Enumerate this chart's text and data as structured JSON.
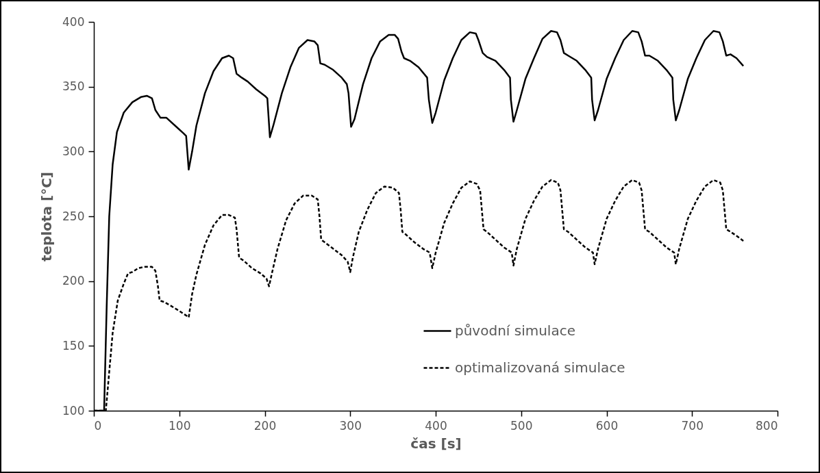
{
  "chart_data": {
    "type": "line",
    "xlabel": "čas [s]",
    "ylabel": "teplota [°C]",
    "xlim": [
      0,
      800
    ],
    "xticks": [
      0,
      100,
      200,
      300,
      400,
      500,
      600,
      700,
      800
    ],
    "ylim": [
      100,
      400
    ],
    "yticks": [
      100,
      150,
      200,
      250,
      300,
      350,
      400
    ],
    "grid": false,
    "legend": "bottom right",
    "marker": "none",
    "series": [
      {
        "name": "původní simulace",
        "color": "#000000",
        "line_style": "solid",
        "x": [
          0,
          12,
          15,
          18,
          22,
          27,
          35,
          45,
          55,
          62,
          68,
          72,
          78,
          85,
          95,
          105,
          108,
          111,
          115,
          120,
          130,
          140,
          150,
          158,
          163,
          167,
          173,
          180,
          190,
          200,
          203,
          206,
          210,
          220,
          230,
          240,
          250,
          258,
          262,
          265,
          270,
          280,
          290,
          296,
          298,
          301,
          305,
          315,
          325,
          335,
          345,
          352,
          356,
          360,
          363,
          370,
          380,
          390,
          392,
          396,
          400,
          410,
          420,
          430,
          440,
          447,
          450,
          455,
          460,
          470,
          480,
          487,
          488,
          491,
          495,
          505,
          515,
          525,
          535,
          542,
          546,
          550,
          555,
          565,
          575,
          582,
          583,
          586,
          590,
          600,
          610,
          620,
          630,
          637,
          641,
          645,
          650,
          660,
          670,
          677,
          678,
          681,
          685,
          695,
          705,
          715,
          725,
          732,
          736,
          740,
          745,
          752,
          760
        ],
        "values": [
          100,
          100,
          180,
          250,
          290,
          315,
          330,
          338,
          342,
          343,
          341,
          332,
          326,
          326,
          320,
          314,
          312,
          286,
          300,
          320,
          345,
          362,
          372,
          374,
          372,
          360,
          357,
          354,
          348,
          343,
          341,
          311,
          320,
          345,
          365,
          380,
          386,
          385,
          382,
          368,
          367,
          363,
          357,
          352,
          345,
          319,
          325,
          352,
          372,
          385,
          390,
          390,
          387,
          377,
          372,
          370,
          365,
          357,
          340,
          322,
          330,
          355,
          372,
          386,
          392,
          391,
          386,
          376,
          373,
          370,
          363,
          357,
          340,
          323,
          332,
          356,
          372,
          387,
          393,
          392,
          386,
          376,
          374,
          370,
          363,
          357,
          340,
          324,
          332,
          356,
          372,
          386,
          393,
          392,
          385,
          374,
          374,
          370,
          363,
          357,
          340,
          324,
          332,
          356,
          372,
          386,
          393,
          392,
          385,
          374,
          375,
          372,
          366
        ]
      },
      {
        "name": "optimalizovaná simulace",
        "color": "#000000",
        "line_style": "dashed",
        "x": [
          0,
          12,
          14,
          18,
          22,
          28,
          35,
          40,
          45,
          52,
          60,
          68,
          72,
          75,
          77,
          82,
          90,
          100,
          109,
          111,
          115,
          120,
          130,
          140,
          150,
          158,
          165,
          167,
          170,
          175,
          185,
          195,
          202,
          205,
          208,
          215,
          225,
          235,
          245,
          255,
          262,
          264,
          266,
          270,
          280,
          290,
          297,
          300,
          303,
          310,
          320,
          330,
          340,
          350,
          357,
          359,
          361,
          365,
          375,
          385,
          393,
          396,
          400,
          410,
          420,
          430,
          440,
          448,
          452,
          454,
          456,
          460,
          470,
          480,
          489,
          491,
          495,
          505,
          515,
          525,
          535,
          543,
          546,
          548,
          550,
          555,
          565,
          575,
          584,
          586,
          590,
          600,
          610,
          620,
          630,
          638,
          641,
          643,
          645,
          650,
          660,
          670,
          679,
          681,
          685,
          695,
          705,
          715,
          725,
          733,
          736,
          738,
          740,
          745,
          752,
          760
        ],
        "values": [
          100,
          100,
          100,
          130,
          160,
          185,
          198,
          206,
          207,
          210,
          211,
          211,
          208,
          196,
          185,
          184,
          181,
          177,
          173,
          172,
          190,
          205,
          228,
          243,
          251,
          251,
          249,
          240,
          218,
          216,
          210,
          206,
          202,
          196,
          205,
          225,
          247,
          260,
          266,
          266,
          263,
          250,
          232,
          230,
          225,
          220,
          215,
          207,
          218,
          238,
          255,
          268,
          273,
          272,
          268,
          255,
          238,
          236,
          230,
          225,
          222,
          210,
          222,
          245,
          260,
          272,
          277,
          275,
          270,
          255,
          240,
          238,
          232,
          226,
          222,
          212,
          225,
          248,
          262,
          273,
          278,
          276,
          270,
          255,
          240,
          238,
          232,
          226,
          222,
          213,
          225,
          248,
          262,
          273,
          278,
          276,
          270,
          255,
          240,
          238,
          232,
          226,
          222,
          213,
          225,
          248,
          262,
          273,
          278,
          276,
          270,
          255,
          240,
          238,
          235,
          231
        ]
      }
    ]
  }
}
